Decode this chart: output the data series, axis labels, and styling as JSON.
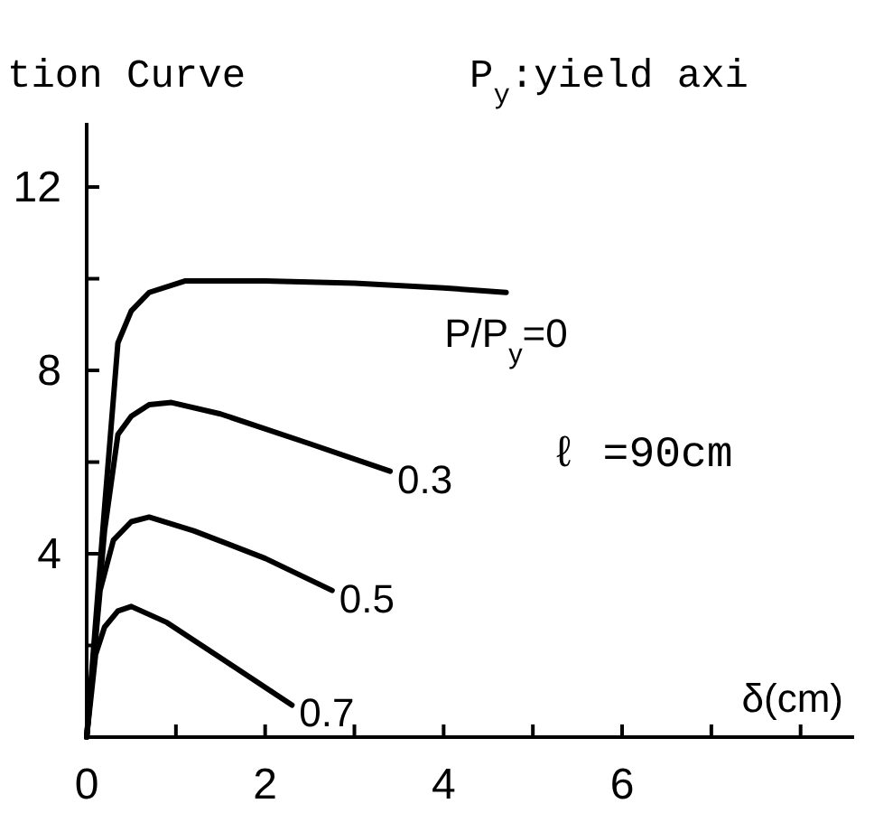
{
  "chart_data": {
    "type": "line",
    "title": "tion Curve",
    "subtitle": "P$_{y}$:yield axi",
    "xlabel": "δ(cm)",
    "annotations": [
      {
        "text": "ℓ =90cm"
      }
    ],
    "xlim": [
      0,
      8.6
    ],
    "ylim": [
      0,
      13.4
    ],
    "xticks": [
      0,
      {
        "value": 1,
        "label": null
      },
      2,
      {
        "value": 3,
        "label": null
      },
      4,
      {
        "value": 5,
        "label": null
      },
      6,
      {
        "value": 7,
        "label": null
      },
      {
        "value": 8,
        "label": null
      }
    ],
    "yticks": [
      {
        "value": 2,
        "label": null
      },
      4,
      {
        "value": 6,
        "label": null
      },
      8,
      {
        "value": 10,
        "label": null
      },
      12
    ],
    "grid": false,
    "marker": "none",
    "line_style": "solid",
    "series": [
      {
        "name": "P/P$_{y}$=0",
        "color": "#000000",
        "x": [
          0,
          0.2,
          0.35,
          0.5,
          0.7,
          1.1,
          2,
          3,
          4,
          4.7
        ],
        "values": [
          0,
          5,
          8.6,
          9.3,
          9.7,
          9.95,
          9.95,
          9.9,
          9.8,
          9.7
        ]
      },
      {
        "name": "0.3",
        "color": "#000000",
        "x": [
          0,
          0.2,
          0.35,
          0.5,
          0.7,
          0.95,
          1.5,
          2.5,
          3.4
        ],
        "values": [
          0,
          4.5,
          6.6,
          7,
          7.25,
          7.3,
          7.05,
          6.4,
          5.8
        ]
      },
      {
        "name": "0.5",
        "color": "#000000",
        "x": [
          0,
          0.15,
          0.3,
          0.5,
          0.7,
          1.2,
          2,
          2.75
        ],
        "values": [
          0,
          3.2,
          4.3,
          4.7,
          4.8,
          4.5,
          3.9,
          3.2
        ]
      },
      {
        "name": "0.7",
        "color": "#000000",
        "x": [
          0,
          0.1,
          0.2,
          0.35,
          0.5,
          0.9,
          1.6,
          2.3
        ],
        "values": [
          0,
          1.8,
          2.4,
          2.75,
          2.85,
          2.5,
          1.6,
          0.7
        ]
      }
    ]
  }
}
